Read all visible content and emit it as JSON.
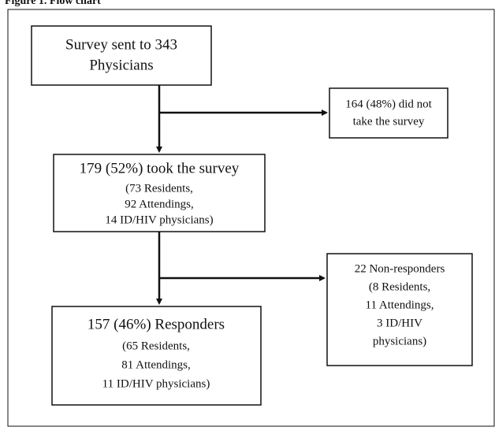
{
  "header": {
    "title": "Figure 1. Flow chart"
  },
  "nodes": [
    {
      "lines": [
        "Survey sent to 343",
        "Physicians"
      ]
    },
    {
      "lines": [
        "164 (48%) did not",
        "take the survey"
      ]
    },
    {
      "lines": [
        "179 (52%) took the survey",
        "(73 Residents,",
        "92 Attendings,",
        "14 ID/HIV physicians)"
      ]
    },
    {
      "lines": [
        "22 Non-responders",
        "(8 Residents,",
        "11 Attendings,",
        "3 ID/HIV",
        "physicians)"
      ]
    },
    {
      "lines": [
        "157 (46%) Responders",
        "(65 Residents,",
        "81 Attendings,",
        "11 ID/HIV physicians)"
      ]
    }
  ]
}
